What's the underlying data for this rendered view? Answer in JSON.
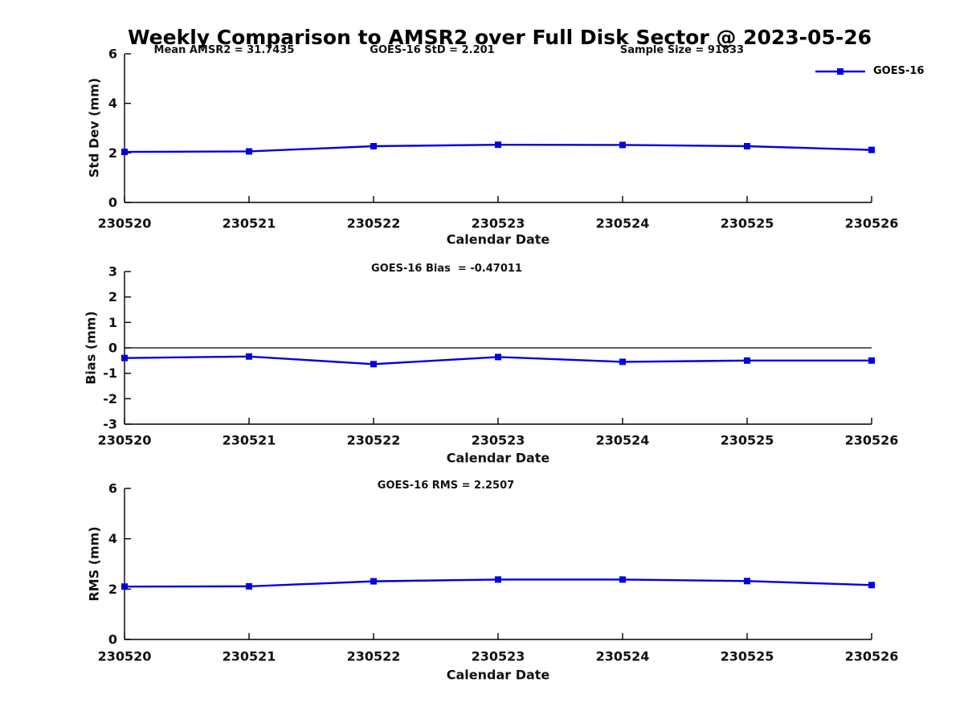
{
  "title": "Weekly Comparison to AMSR2 over Full Disk Sector @ 2023-05-26",
  "legend": {
    "label": "GOES-16"
  },
  "line_color": "#0000e0",
  "chart_data": [
    {
      "type": "line",
      "name": "std-dev-panel",
      "ylabel": "Std Dev (mm)",
      "xlabel": "Calendar Date",
      "categories": [
        "230520",
        "230521",
        "230522",
        "230523",
        "230524",
        "230525",
        "230526"
      ],
      "series": [
        {
          "name": "GOES-16",
          "values": [
            2.04,
            2.06,
            2.27,
            2.33,
            2.32,
            2.27,
            2.12
          ]
        }
      ],
      "ylim": [
        0,
        6
      ],
      "yticks": [
        0,
        2,
        4,
        6
      ],
      "grid": false,
      "zero_line": false,
      "legend_position": "top-right",
      "annotations": [
        {
          "text": "Mean AMSR2 = 31.7435"
        },
        {
          "text": "GOES-16 StD = 2.201"
        },
        {
          "text": "Sample Size = 91833"
        }
      ]
    },
    {
      "type": "line",
      "name": "bias-panel",
      "ylabel": "Bias (mm)",
      "xlabel": "Calendar Date",
      "categories": [
        "230520",
        "230521",
        "230522",
        "230523",
        "230524",
        "230525",
        "230526"
      ],
      "series": [
        {
          "name": "GOES-16",
          "values": [
            -0.4,
            -0.34,
            -0.64,
            -0.36,
            -0.55,
            -0.5,
            -0.5
          ]
        }
      ],
      "ylim": [
        -3,
        3
      ],
      "yticks": [
        -3,
        -2,
        -1,
        0,
        1,
        2,
        3
      ],
      "grid": false,
      "zero_line": true,
      "annotations": [
        {
          "text": "GOES-16 Bias  = -0.47011"
        }
      ]
    },
    {
      "type": "line",
      "name": "rms-panel",
      "ylabel": "RMS (mm)",
      "xlabel": "Calendar Date",
      "categories": [
        "230520",
        "230521",
        "230522",
        "230523",
        "230524",
        "230525",
        "230526"
      ],
      "series": [
        {
          "name": "GOES-16",
          "values": [
            2.1,
            2.11,
            2.31,
            2.38,
            2.38,
            2.32,
            2.16
          ]
        }
      ],
      "ylim": [
        0,
        6
      ],
      "yticks": [
        0,
        2,
        4,
        6
      ],
      "grid": false,
      "zero_line": false,
      "annotations": [
        {
          "text": "GOES-16 RMS = 2.2507"
        }
      ]
    }
  ]
}
